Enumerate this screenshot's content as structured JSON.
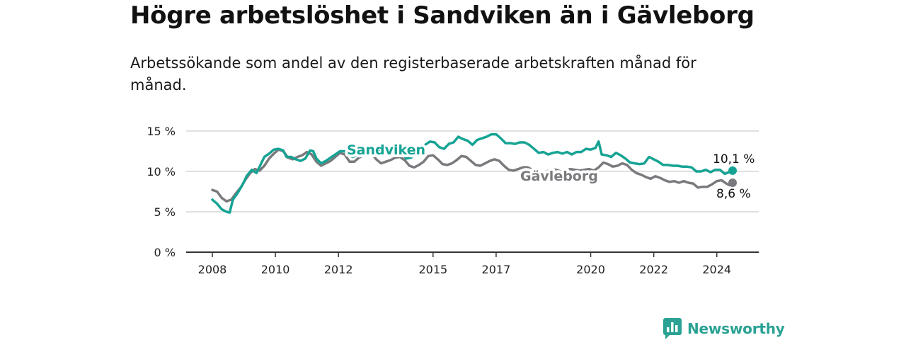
{
  "header": {
    "title": "Högre arbetslöshet i Sandviken än i Gävleborg",
    "subtitle": "Arbetssökande som andel av den registerbaserade arbetskraften månad för månad."
  },
  "logo": {
    "text": "Newsworthy",
    "icon": "bar-chart-speech-bubble-icon",
    "color": "#2aa294"
  },
  "chart_data": {
    "type": "line",
    "y_ticks": [
      {
        "value": 0,
        "label": "0 %"
      },
      {
        "value": 5,
        "label": "5 %"
      },
      {
        "value": 10,
        "label": "10 %"
      },
      {
        "value": 15,
        "label": "15 %"
      }
    ],
    "x_ticks": [
      {
        "value": 2008,
        "label": "2008"
      },
      {
        "value": 2010,
        "label": "2010"
      },
      {
        "value": 2012,
        "label": "2012"
      },
      {
        "value": 2015,
        "label": "2015"
      },
      {
        "value": 2017,
        "label": "2017"
      },
      {
        "value": 2020,
        "label": "2020"
      },
      {
        "value": 2022,
        "label": "2022"
      },
      {
        "value": 2024,
        "label": "2024"
      }
    ],
    "xlim": [
      2007.6,
      2025.4
    ],
    "ylim": [
      0,
      15
    ],
    "grid": true,
    "series": [
      {
        "name": "Sandviken",
        "color": "#16a394",
        "end_label": "10,1 %",
        "points": [
          [
            2008.0,
            6.5
          ],
          [
            2008.15,
            6.0
          ],
          [
            2008.3,
            5.3
          ],
          [
            2008.45,
            5.0
          ],
          [
            2008.55,
            4.9
          ],
          [
            2008.65,
            6.5
          ],
          [
            2008.8,
            7.3
          ],
          [
            2008.95,
            8.3
          ],
          [
            2009.1,
            9.5
          ],
          [
            2009.25,
            10.2
          ],
          [
            2009.4,
            9.8
          ],
          [
            2009.5,
            10.6
          ],
          [
            2009.65,
            11.8
          ],
          [
            2009.8,
            12.2
          ],
          [
            2009.95,
            12.7
          ],
          [
            2010.1,
            12.8
          ],
          [
            2010.25,
            12.6
          ],
          [
            2010.35,
            11.8
          ],
          [
            2010.5,
            11.8
          ],
          [
            2010.65,
            11.5
          ],
          [
            2010.8,
            11.3
          ],
          [
            2010.95,
            11.6
          ],
          [
            2011.1,
            12.6
          ],
          [
            2011.2,
            12.5
          ],
          [
            2011.3,
            11.6
          ],
          [
            2011.45,
            11.0
          ],
          [
            2011.6,
            11.3
          ],
          [
            2011.75,
            11.7
          ],
          [
            2011.9,
            12.1
          ],
          [
            2012.05,
            12.5
          ],
          [
            2012.2,
            12.5
          ],
          [
            2012.3,
            12.0
          ],
          [
            2012.45,
            11.8
          ],
          [
            2012.6,
            12.0
          ],
          [
            2012.75,
            12.3
          ],
          [
            2012.9,
            12.5
          ],
          [
            2013.05,
            12.8
          ],
          [
            2013.2,
            12.6
          ],
          [
            2013.4,
            12.7
          ],
          [
            2013.6,
            12.5
          ],
          [
            2013.8,
            12.4
          ],
          [
            2014.0,
            12.3
          ],
          [
            2014.15,
            11.6
          ],
          [
            2014.3,
            11.7
          ],
          [
            2014.45,
            12.1
          ],
          [
            2014.6,
            12.5
          ],
          [
            2014.75,
            13.3
          ],
          [
            2014.9,
            13.7
          ],
          [
            2015.05,
            13.6
          ],
          [
            2015.2,
            13.0
          ],
          [
            2015.35,
            12.8
          ],
          [
            2015.5,
            13.4
          ],
          [
            2015.65,
            13.6
          ],
          [
            2015.8,
            14.3
          ],
          [
            2015.95,
            14.0
          ],
          [
            2016.1,
            13.8
          ],
          [
            2016.25,
            13.3
          ],
          [
            2016.4,
            13.9
          ],
          [
            2016.55,
            14.1
          ],
          [
            2016.7,
            14.3
          ],
          [
            2016.85,
            14.6
          ],
          [
            2017.0,
            14.6
          ],
          [
            2017.15,
            14.1
          ],
          [
            2017.3,
            13.5
          ],
          [
            2017.45,
            13.5
          ],
          [
            2017.6,
            13.4
          ],
          [
            2017.75,
            13.6
          ],
          [
            2017.9,
            13.6
          ],
          [
            2018.05,
            13.3
          ],
          [
            2018.2,
            12.8
          ],
          [
            2018.35,
            12.3
          ],
          [
            2018.5,
            12.4
          ],
          [
            2018.65,
            12.1
          ],
          [
            2018.8,
            12.3
          ],
          [
            2018.95,
            12.4
          ],
          [
            2019.1,
            12.2
          ],
          [
            2019.25,
            12.4
          ],
          [
            2019.4,
            12.1
          ],
          [
            2019.55,
            12.4
          ],
          [
            2019.7,
            12.4
          ],
          [
            2019.85,
            12.8
          ],
          [
            2020.0,
            12.7
          ],
          [
            2020.15,
            12.9
          ],
          [
            2020.25,
            13.7
          ],
          [
            2020.35,
            12.1
          ],
          [
            2020.5,
            12.0
          ],
          [
            2020.65,
            11.8
          ],
          [
            2020.8,
            12.3
          ],
          [
            2020.95,
            12.0
          ],
          [
            2021.1,
            11.6
          ],
          [
            2021.25,
            11.1
          ],
          [
            2021.4,
            11.0
          ],
          [
            2021.55,
            10.9
          ],
          [
            2021.7,
            11.0
          ],
          [
            2021.85,
            11.8
          ],
          [
            2022.0,
            11.5
          ],
          [
            2022.15,
            11.2
          ],
          [
            2022.3,
            10.8
          ],
          [
            2022.45,
            10.8
          ],
          [
            2022.6,
            10.7
          ],
          [
            2022.75,
            10.7
          ],
          [
            2022.9,
            10.6
          ],
          [
            2023.05,
            10.6
          ],
          [
            2023.2,
            10.5
          ],
          [
            2023.35,
            10.0
          ],
          [
            2023.5,
            10.0
          ],
          [
            2023.65,
            10.2
          ],
          [
            2023.8,
            9.9
          ],
          [
            2023.95,
            10.2
          ],
          [
            2024.1,
            10.2
          ],
          [
            2024.25,
            9.7
          ],
          [
            2024.4,
            9.9
          ],
          [
            2024.5,
            10.1
          ]
        ]
      },
      {
        "name": "Gävleborg",
        "color": "#7a7a7e",
        "end_label": "8,6 %",
        "points": [
          [
            2008.0,
            7.7
          ],
          [
            2008.15,
            7.5
          ],
          [
            2008.3,
            6.7
          ],
          [
            2008.45,
            6.3
          ],
          [
            2008.6,
            6.5
          ],
          [
            2008.75,
            7.3
          ],
          [
            2008.9,
            8.0
          ],
          [
            2009.05,
            9.0
          ],
          [
            2009.2,
            9.8
          ],
          [
            2009.35,
            10.3
          ],
          [
            2009.5,
            10.1
          ],
          [
            2009.65,
            10.7
          ],
          [
            2009.8,
            11.6
          ],
          [
            2009.95,
            12.2
          ],
          [
            2010.1,
            12.7
          ],
          [
            2010.25,
            12.5
          ],
          [
            2010.4,
            11.7
          ],
          [
            2010.55,
            11.5
          ],
          [
            2010.7,
            11.8
          ],
          [
            2010.85,
            12.0
          ],
          [
            2011.0,
            12.4
          ],
          [
            2011.15,
            12.1
          ],
          [
            2011.3,
            11.2
          ],
          [
            2011.45,
            10.7
          ],
          [
            2011.6,
            11.0
          ],
          [
            2011.75,
            11.3
          ],
          [
            2011.9,
            11.8
          ],
          [
            2012.05,
            12.3
          ],
          [
            2012.2,
            12.1
          ],
          [
            2012.35,
            11.2
          ],
          [
            2012.5,
            11.2
          ],
          [
            2012.65,
            11.7
          ],
          [
            2012.8,
            12.0
          ],
          [
            2012.95,
            12.1
          ],
          [
            2013.05,
            12.2
          ],
          [
            2013.2,
            11.5
          ],
          [
            2013.35,
            11.0
          ],
          [
            2013.5,
            11.2
          ],
          [
            2013.65,
            11.4
          ],
          [
            2013.8,
            11.7
          ],
          [
            2013.95,
            11.8
          ],
          [
            2014.1,
            11.4
          ],
          [
            2014.25,
            10.7
          ],
          [
            2014.4,
            10.5
          ],
          [
            2014.55,
            10.8
          ],
          [
            2014.7,
            11.2
          ],
          [
            2014.85,
            11.9
          ],
          [
            2015.0,
            12.0
          ],
          [
            2015.15,
            11.5
          ],
          [
            2015.3,
            10.9
          ],
          [
            2015.45,
            10.8
          ],
          [
            2015.6,
            11.0
          ],
          [
            2015.75,
            11.4
          ],
          [
            2015.9,
            11.9
          ],
          [
            2016.05,
            11.8
          ],
          [
            2016.2,
            11.3
          ],
          [
            2016.35,
            10.8
          ],
          [
            2016.5,
            10.7
          ],
          [
            2016.65,
            11.0
          ],
          [
            2016.8,
            11.3
          ],
          [
            2016.95,
            11.5
          ],
          [
            2017.1,
            11.3
          ],
          [
            2017.25,
            10.7
          ],
          [
            2017.4,
            10.2
          ],
          [
            2017.55,
            10.1
          ],
          [
            2017.7,
            10.3
          ],
          [
            2017.85,
            10.5
          ],
          [
            2018.0,
            10.5
          ],
          [
            2018.15,
            10.2
          ],
          [
            2018.3,
            9.9
          ],
          [
            2018.45,
            9.8
          ],
          [
            2018.6,
            10.0
          ],
          [
            2018.75,
            10.3
          ],
          [
            2018.9,
            10.2
          ],
          [
            2019.05,
            10.0
          ],
          [
            2019.2,
            10.1
          ],
          [
            2019.35,
            10.3
          ],
          [
            2019.5,
            10.2
          ],
          [
            2019.65,
            10.1
          ],
          [
            2019.8,
            10.2
          ],
          [
            2019.95,
            10.3
          ],
          [
            2020.1,
            10.1
          ],
          [
            2020.25,
            10.5
          ],
          [
            2020.4,
            11.1
          ],
          [
            2020.55,
            10.9
          ],
          [
            2020.7,
            10.6
          ],
          [
            2020.85,
            10.7
          ],
          [
            2021.0,
            11.0
          ],
          [
            2021.15,
            10.8
          ],
          [
            2021.3,
            10.2
          ],
          [
            2021.45,
            9.8
          ],
          [
            2021.6,
            9.6
          ],
          [
            2021.75,
            9.3
          ],
          [
            2021.9,
            9.1
          ],
          [
            2022.05,
            9.4
          ],
          [
            2022.2,
            9.2
          ],
          [
            2022.35,
            8.9
          ],
          [
            2022.5,
            8.7
          ],
          [
            2022.65,
            8.8
          ],
          [
            2022.8,
            8.6
          ],
          [
            2022.95,
            8.8
          ],
          [
            2023.1,
            8.6
          ],
          [
            2023.25,
            8.5
          ],
          [
            2023.4,
            8.0
          ],
          [
            2023.55,
            8.1
          ],
          [
            2023.7,
            8.1
          ],
          [
            2023.85,
            8.4
          ],
          [
            2024.0,
            8.8
          ],
          [
            2024.15,
            8.9
          ],
          [
            2024.3,
            8.5
          ],
          [
            2024.4,
            8.3
          ],
          [
            2024.5,
            8.6
          ]
        ]
      }
    ]
  }
}
